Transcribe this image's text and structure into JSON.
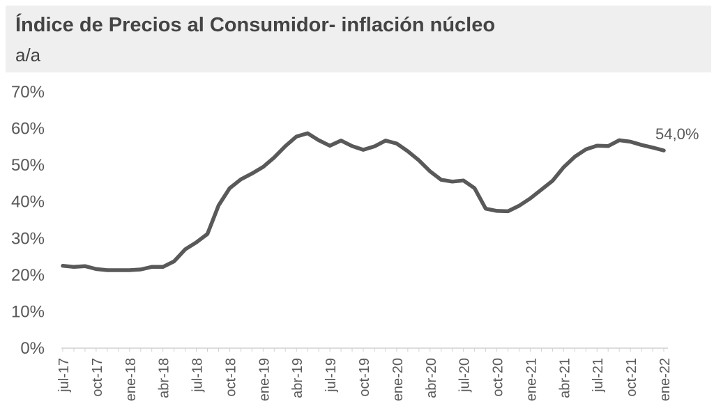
{
  "chart_data": {
    "type": "line",
    "title": "Índice de Precios al Consumidor- inflación núcleo",
    "subtitle": "a/a",
    "xlabel": "",
    "ylabel": "",
    "ylim": [
      0,
      70
    ],
    "yticks": [
      "0%",
      "10%",
      "20%",
      "30%",
      "40%",
      "50%",
      "60%",
      "70%"
    ],
    "x_tick_labels": [
      "jul-17",
      "oct-17",
      "ene-18",
      "abr-18",
      "jul-18",
      "oct-18",
      "ene-19",
      "abr-19",
      "jul-19",
      "oct-19",
      "ene-20",
      "abr-20",
      "jul-20",
      "oct-20",
      "ene-21",
      "abr-21",
      "jul-21",
      "oct-21",
      "ene-22"
    ],
    "x": [
      "jul-17",
      "ago-17",
      "sep-17",
      "oct-17",
      "nov-17",
      "dic-17",
      "ene-18",
      "feb-18",
      "mar-18",
      "abr-18",
      "may-18",
      "jun-18",
      "jul-18",
      "ago-18",
      "sep-18",
      "oct-18",
      "nov-18",
      "dic-18",
      "ene-19",
      "feb-19",
      "mar-19",
      "abr-19",
      "may-19",
      "jun-19",
      "jul-19",
      "ago-19",
      "sep-19",
      "oct-19",
      "nov-19",
      "dic-19",
      "ene-20",
      "feb-20",
      "mar-20",
      "abr-20",
      "may-20",
      "jun-20",
      "jul-20",
      "ago-20",
      "sep-20",
      "oct-20",
      "nov-20",
      "dic-20",
      "ene-21",
      "feb-21",
      "mar-21",
      "abr-21",
      "may-21",
      "jun-21",
      "jul-21",
      "ago-21",
      "sep-21",
      "oct-21",
      "nov-21",
      "dic-21",
      "ene-22"
    ],
    "series": [
      {
        "values": [
          22.5,
          22.2,
          22.4,
          21.6,
          21.3,
          21.3,
          21.3,
          21.5,
          22.2,
          22.2,
          23.7,
          27.0,
          28.9,
          31.2,
          39.0,
          43.7,
          46.1,
          47.7,
          49.5,
          52.1,
          55.2,
          57.8,
          58.7,
          56.8,
          55.3,
          56.7,
          55.2,
          54.2,
          55.1,
          56.7,
          55.9,
          53.8,
          51.3,
          48.3,
          46.0,
          45.5,
          45.8,
          43.7,
          38.1,
          37.5,
          37.4,
          38.9,
          40.9,
          43.3,
          45.7,
          49.4,
          52.3,
          54.3,
          55.3,
          55.2,
          56.8,
          56.4,
          55.5,
          54.8,
          54.0
        ],
        "color": "#595959"
      }
    ],
    "annotations": [
      {
        "text": "54,0%",
        "x": "ene-22",
        "y": 54.0
      }
    ],
    "grid": false,
    "legend": "none"
  }
}
